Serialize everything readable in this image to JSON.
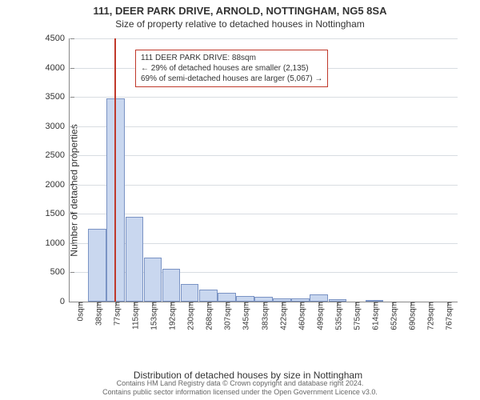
{
  "titles": {
    "line1": "111, DEER PARK DRIVE, ARNOLD, NOTTINGHAM, NG5 8SA",
    "line2": "Size of property relative to detached houses in Nottingham"
  },
  "chart": {
    "type": "histogram",
    "ylabel": "Number of detached properties",
    "xlabel": "Distribution of detached houses by size in Nottingham",
    "ylim": [
      0,
      4500
    ],
    "ytick_step": 500,
    "xticks": [
      "0sqm",
      "38sqm",
      "77sqm",
      "115sqm",
      "153sqm",
      "192sqm",
      "230sqm",
      "268sqm",
      "307sqm",
      "345sqm",
      "383sqm",
      "422sqm",
      "460sqm",
      "499sqm",
      "535sqm",
      "575sqm",
      "614sqm",
      "652sqm",
      "690sqm",
      "729sqm",
      "767sqm"
    ],
    "bars": [
      0,
      1250,
      3480,
      1450,
      750,
      560,
      300,
      200,
      150,
      100,
      80,
      60,
      50,
      120,
      40,
      0,
      30,
      0,
      0,
      0,
      0
    ],
    "bar_fill": "#c9d7ef",
    "bar_border": "#7a93c4",
    "grid_color": "#d8dde2",
    "background_color": "#ffffff",
    "marker": {
      "position_sqm": 88,
      "x_range_sqm": 767,
      "color": "#c0392b"
    },
    "annotation": {
      "lines": [
        "111 DEER PARK DRIVE: 88sqm",
        "← 29% of detached houses are smaller (2,135)",
        "69% of semi-detached houses are larger (5,067) →"
      ],
      "border_color": "#c0392b"
    }
  },
  "footer": {
    "line1": "Contains HM Land Registry data © Crown copyright and database right 2024.",
    "line2": "Contains public sector information licensed under the Open Government Licence v3.0."
  }
}
